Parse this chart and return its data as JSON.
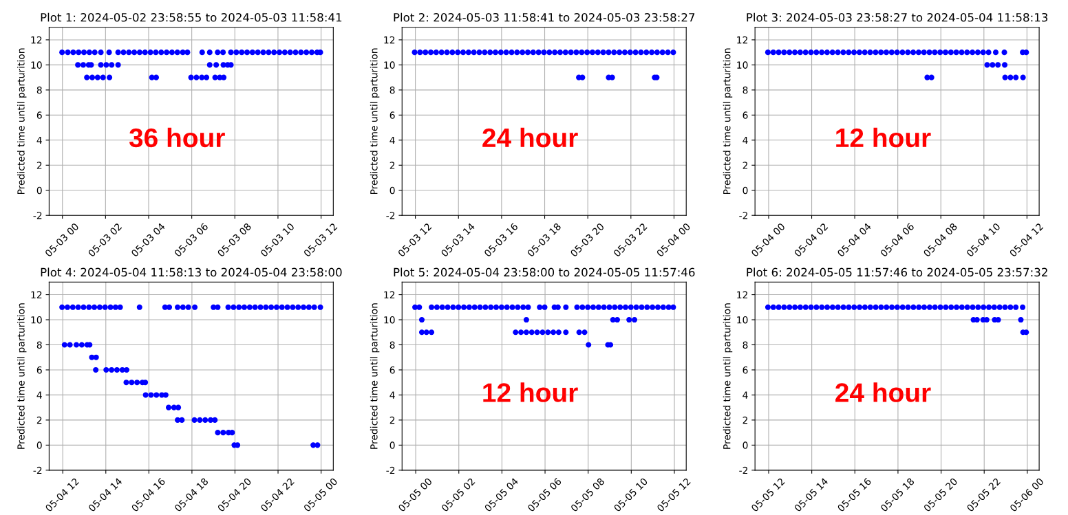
{
  "chart_data": [
    {
      "type": "scatter",
      "title": "Plot 1: 2024-05-02 23:58:55 to 2024-05-03 11:58:41",
      "ylabel": "Predicted time until parturition",
      "annotations": [
        "36 hour"
      ],
      "marker": "circle",
      "grid": true,
      "xlim": [
        "2024-05-02T23:23",
        "2024-05-03T12:34"
      ],
      "ylim": [
        -2,
        13
      ],
      "yticks": [
        -2,
        0,
        2,
        4,
        6,
        8,
        10,
        12
      ],
      "xticks": [
        {
          "value": "2024-05-03T00:00",
          "label": "05-03 00"
        },
        {
          "value": "2024-05-03T02:00",
          "label": "05-03 02"
        },
        {
          "value": "2024-05-03T04:00",
          "label": "05-03 04"
        },
        {
          "value": "2024-05-03T06:00",
          "label": "05-03 06"
        },
        {
          "value": "2024-05-03T08:00",
          "label": "05-03 08"
        },
        {
          "value": "2024-05-03T10:00",
          "label": "05-03 10"
        },
        {
          "value": "2024-05-03T12:00",
          "label": "05-03 12"
        }
      ],
      "series": [
        {
          "color": "#0000ff",
          "x": [
            "2024-05-02T23:59",
            "2024-05-03T00:15",
            "2024-05-03T00:30",
            "2024-05-03T00:45",
            "2024-05-03T01:00",
            "2024-05-03T01:15",
            "2024-05-03T01:30",
            "2024-05-03T01:47",
            "2024-05-03T02:10",
            "2024-05-03T02:35",
            "2024-05-03T02:50",
            "2024-05-03T03:05",
            "2024-05-03T03:20",
            "2024-05-03T03:35",
            "2024-05-03T03:50",
            "2024-05-03T04:05",
            "2024-05-03T04:20",
            "2024-05-03T04:35",
            "2024-05-03T04:50",
            "2024-05-03T05:05",
            "2024-05-03T05:20",
            "2024-05-03T05:35",
            "2024-05-03T05:48",
            "2024-05-03T06:29",
            "2024-05-03T06:50",
            "2024-05-03T07:12",
            "2024-05-03T07:27",
            "2024-05-03T07:49",
            "2024-05-03T08:04",
            "2024-05-03T08:19",
            "2024-05-03T08:34",
            "2024-05-03T08:49",
            "2024-05-03T09:04",
            "2024-05-03T09:19",
            "2024-05-03T09:34",
            "2024-05-03T09:49",
            "2024-05-03T10:04",
            "2024-05-03T10:19",
            "2024-05-03T10:34",
            "2024-05-03T10:49",
            "2024-05-03T11:04",
            "2024-05-03T11:19",
            "2024-05-03T11:34",
            "2024-05-03T11:49",
            "2024-05-03T11:58"
          ],
          "values": [
            11,
            11,
            11,
            11,
            11,
            11,
            11,
            11,
            11,
            11,
            11,
            11,
            11,
            11,
            11,
            11,
            11,
            11,
            11,
            11,
            11,
            11,
            11,
            11,
            11,
            11,
            11,
            11,
            11,
            11,
            11,
            11,
            11,
            11,
            11,
            11,
            11,
            11,
            11,
            11,
            11,
            11,
            11,
            11,
            11
          ]
        },
        {
          "color": "#0000ff",
          "x": [
            "2024-05-03T00:43",
            "2024-05-03T00:58",
            "2024-05-03T01:13",
            "2024-05-03T01:20",
            "2024-05-03T01:47",
            "2024-05-03T02:02",
            "2024-05-03T02:17",
            "2024-05-03T02:35",
            "2024-05-03T06:50",
            "2024-05-03T07:08",
            "2024-05-03T07:28",
            "2024-05-03T07:40",
            "2024-05-03T07:49"
          ],
          "values": [
            10,
            10,
            10,
            10,
            10,
            10,
            10,
            10,
            10,
            10,
            10,
            10,
            10
          ]
        },
        {
          "color": "#0000ff",
          "x": [
            "2024-05-03T01:08",
            "2024-05-03T01:23",
            "2024-05-03T01:38",
            "2024-05-03T01:53",
            "2024-05-03T02:11",
            "2024-05-03T04:09",
            "2024-05-03T04:21",
            "2024-05-03T05:58",
            "2024-05-03T06:13",
            "2024-05-03T06:28",
            "2024-05-03T06:41",
            "2024-05-03T07:05",
            "2024-05-03T07:18",
            "2024-05-03T07:29"
          ],
          "values": [
            9,
            9,
            9,
            9,
            9,
            9,
            9,
            9,
            9,
            9,
            9,
            9,
            9,
            9
          ]
        }
      ]
    },
    {
      "type": "scatter",
      "title": "Plot 2: 2024-05-03 11:58:41 to 2024-05-03 23:58:27",
      "ylabel": "Predicted time until parturition",
      "annotations": [
        "24 hour"
      ],
      "marker": "circle",
      "grid": true,
      "xlim": [
        "2024-05-03T11:23",
        "2024-05-04T00:34"
      ],
      "ylim": [
        -2,
        13
      ],
      "yticks": [
        -2,
        0,
        2,
        4,
        6,
        8,
        10,
        12
      ],
      "xticks": [
        {
          "value": "2024-05-03T12:00",
          "label": "05-03 12"
        },
        {
          "value": "2024-05-03T14:00",
          "label": "05-03 14"
        },
        {
          "value": "2024-05-03T16:00",
          "label": "05-03 16"
        },
        {
          "value": "2024-05-03T18:00",
          "label": "05-03 18"
        },
        {
          "value": "2024-05-03T20:00",
          "label": "05-03 20"
        },
        {
          "value": "2024-05-03T22:00",
          "label": "05-03 22"
        },
        {
          "value": "2024-05-04T00:00",
          "label": "05-04 00"
        }
      ],
      "series": [
        {
          "color": "#0000ff",
          "x": [
            "2024-05-03T11:58",
            "2024-05-03T12:13",
            "2024-05-03T12:28",
            "2024-05-03T12:43",
            "2024-05-03T12:58",
            "2024-05-03T13:13",
            "2024-05-03T13:28",
            "2024-05-03T13:43",
            "2024-05-03T13:58",
            "2024-05-03T14:13",
            "2024-05-03T14:28",
            "2024-05-03T14:43",
            "2024-05-03T14:58",
            "2024-05-03T15:13",
            "2024-05-03T15:28",
            "2024-05-03T15:43",
            "2024-05-03T15:58",
            "2024-05-03T16:13",
            "2024-05-03T16:28",
            "2024-05-03T16:43",
            "2024-05-03T16:58",
            "2024-05-03T17:13",
            "2024-05-03T17:28",
            "2024-05-03T17:43",
            "2024-05-03T17:58",
            "2024-05-03T18:13",
            "2024-05-03T18:28",
            "2024-05-03T18:43",
            "2024-05-03T18:58",
            "2024-05-03T19:13",
            "2024-05-03T19:28",
            "2024-05-03T19:43",
            "2024-05-03T19:58",
            "2024-05-03T20:13",
            "2024-05-03T20:28",
            "2024-05-03T20:43",
            "2024-05-03T20:58",
            "2024-05-03T21:13",
            "2024-05-03T21:28",
            "2024-05-03T21:43",
            "2024-05-03T21:58",
            "2024-05-03T22:13",
            "2024-05-03T22:28",
            "2024-05-03T22:43",
            "2024-05-03T22:58",
            "2024-05-03T23:13",
            "2024-05-03T23:28",
            "2024-05-03T23:43",
            "2024-05-03T23:58"
          ],
          "values": [
            11,
            11,
            11,
            11,
            11,
            11,
            11,
            11,
            11,
            11,
            11,
            11,
            11,
            11,
            11,
            11,
            11,
            11,
            11,
            11,
            11,
            11,
            11,
            11,
            11,
            11,
            11,
            11,
            11,
            11,
            11,
            11,
            11,
            11,
            11,
            11,
            11,
            11,
            11,
            11,
            11,
            11,
            11,
            11,
            11,
            11,
            11,
            11,
            11
          ]
        },
        {
          "color": "#0000ff",
          "x": [
            "2024-05-03T19:35",
            "2024-05-03T19:45",
            "2024-05-03T20:58",
            "2024-05-03T21:08",
            "2024-05-03T23:06",
            "2024-05-03T23:12"
          ],
          "values": [
            9,
            9,
            9,
            9,
            9,
            9
          ]
        }
      ]
    },
    {
      "type": "scatter",
      "title": "Plot 3: 2024-05-03 23:58:27 to 2024-05-04 11:58:13",
      "ylabel": "Predicted time until parturition",
      "annotations": [
        "12 hour"
      ],
      "marker": "circle",
      "grid": true,
      "xlim": [
        "2024-05-03T23:22",
        "2024-05-04T12:34"
      ],
      "ylim": [
        -2,
        13
      ],
      "yticks": [
        -2,
        0,
        2,
        4,
        6,
        8,
        10,
        12
      ],
      "xticks": [
        {
          "value": "2024-05-04T00:00",
          "label": "05-04 00"
        },
        {
          "value": "2024-05-04T02:00",
          "label": "05-04 02"
        },
        {
          "value": "2024-05-04T04:00",
          "label": "05-04 04"
        },
        {
          "value": "2024-05-04T06:00",
          "label": "05-04 06"
        },
        {
          "value": "2024-05-04T08:00",
          "label": "05-04 08"
        },
        {
          "value": "2024-05-04T10:00",
          "label": "05-04 10"
        },
        {
          "value": "2024-05-04T12:00",
          "label": "05-04 12"
        }
      ],
      "series": [
        {
          "color": "#0000ff",
          "x": [
            "2024-05-03T23:58",
            "2024-05-04T00:13",
            "2024-05-04T00:28",
            "2024-05-04T00:43",
            "2024-05-04T00:58",
            "2024-05-04T01:13",
            "2024-05-04T01:28",
            "2024-05-04T01:43",
            "2024-05-04T01:58",
            "2024-05-04T02:13",
            "2024-05-04T02:28",
            "2024-05-04T02:43",
            "2024-05-04T02:58",
            "2024-05-04T03:13",
            "2024-05-04T03:28",
            "2024-05-04T03:43",
            "2024-05-04T03:58",
            "2024-05-04T04:13",
            "2024-05-04T04:28",
            "2024-05-04T04:43",
            "2024-05-04T04:58",
            "2024-05-04T05:13",
            "2024-05-04T05:28",
            "2024-05-04T05:43",
            "2024-05-04T05:58",
            "2024-05-04T06:13",
            "2024-05-04T06:28",
            "2024-05-04T06:43",
            "2024-05-04T06:58",
            "2024-05-04T07:13",
            "2024-05-04T07:28",
            "2024-05-04T07:43",
            "2024-05-04T07:58",
            "2024-05-04T08:13",
            "2024-05-04T08:28",
            "2024-05-04T08:43",
            "2024-05-04T08:58",
            "2024-05-04T09:13",
            "2024-05-04T09:28",
            "2024-05-04T09:43",
            "2024-05-04T09:58",
            "2024-05-04T10:13",
            "2024-05-04T10:33",
            "2024-05-04T10:57",
            "2024-05-04T11:48",
            "2024-05-04T11:58"
          ],
          "values": [
            11,
            11,
            11,
            11,
            11,
            11,
            11,
            11,
            11,
            11,
            11,
            11,
            11,
            11,
            11,
            11,
            11,
            11,
            11,
            11,
            11,
            11,
            11,
            11,
            11,
            11,
            11,
            11,
            11,
            11,
            11,
            11,
            11,
            11,
            11,
            11,
            11,
            11,
            11,
            11,
            11,
            11,
            11,
            11,
            11,
            11
          ]
        },
        {
          "color": "#0000ff",
          "x": [
            "2024-05-04T10:09",
            "2024-05-04T10:24",
            "2024-05-04T10:39",
            "2024-05-04T10:58"
          ],
          "values": [
            10,
            10,
            10,
            10
          ]
        },
        {
          "color": "#0000ff",
          "x": [
            "2024-05-04T07:22",
            "2024-05-04T07:34",
            "2024-05-04T10:59",
            "2024-05-04T11:14",
            "2024-05-04T11:29",
            "2024-05-04T11:49"
          ],
          "values": [
            9,
            9,
            9,
            9,
            9,
            9
          ]
        }
      ]
    },
    {
      "type": "scatter",
      "title": "Plot 4: 2024-05-04 11:58:13 to 2024-05-04 23:58:00",
      "ylabel": "Predicted time until parturition",
      "marker": "circle",
      "grid": true,
      "xlim": [
        "2024-05-04T11:22",
        "2024-05-05T00:34"
      ],
      "ylim": [
        -2,
        13
      ],
      "yticks": [
        -2,
        0,
        2,
        4,
        6,
        8,
        10,
        12
      ],
      "xticks": [
        {
          "value": "2024-05-04T12:00",
          "label": "05-04 12"
        },
        {
          "value": "2024-05-04T14:00",
          "label": "05-04 14"
        },
        {
          "value": "2024-05-04T16:00",
          "label": "05-04 16"
        },
        {
          "value": "2024-05-04T18:00",
          "label": "05-04 18"
        },
        {
          "value": "2024-05-04T20:00",
          "label": "05-04 20"
        },
        {
          "value": "2024-05-04T22:00",
          "label": "05-04 22"
        },
        {
          "value": "2024-05-05T00:00",
          "label": "05-05 00"
        }
      ],
      "series": [
        {
          "color": "#0000ff",
          "x": [
            "2024-05-04T11:58",
            "2024-05-04T12:13",
            "2024-05-04T12:28",
            "2024-05-04T12:43",
            "2024-05-04T12:58",
            "2024-05-04T13:13",
            "2024-05-04T13:28",
            "2024-05-04T13:43",
            "2024-05-04T13:58",
            "2024-05-04T14:13",
            "2024-05-04T14:27",
            "2024-05-04T14:40",
            "2024-05-04T15:34",
            "2024-05-04T16:45",
            "2024-05-04T16:57",
            "2024-05-04T17:20",
            "2024-05-04T17:35",
            "2024-05-04T17:50",
            "2024-05-04T18:08",
            "2024-05-04T19:00",
            "2024-05-04T19:12",
            "2024-05-04T19:41",
            "2024-05-04T19:56",
            "2024-05-04T20:11",
            "2024-05-04T20:26",
            "2024-05-04T20:41",
            "2024-05-04T20:56",
            "2024-05-04T21:11",
            "2024-05-04T21:26",
            "2024-05-04T21:41",
            "2024-05-04T21:56",
            "2024-05-04T22:11",
            "2024-05-04T22:26",
            "2024-05-04T22:41",
            "2024-05-04T22:56",
            "2024-05-04T23:11",
            "2024-05-04T23:26",
            "2024-05-04T23:41",
            "2024-05-04T23:58"
          ],
          "values": [
            11,
            11,
            11,
            11,
            11,
            11,
            11,
            11,
            11,
            11,
            11,
            11,
            11,
            11,
            11,
            11,
            11,
            11,
            11,
            11,
            11,
            11,
            11,
            11,
            11,
            11,
            11,
            11,
            11,
            11,
            11,
            11,
            11,
            11,
            11,
            11,
            11,
            11,
            11
          ]
        },
        {
          "color": "#0000ff",
          "x": [
            "2024-05-04T12:05",
            "2024-05-04T12:20",
            "2024-05-04T12:38",
            "2024-05-04T12:53",
            "2024-05-04T13:08",
            "2024-05-04T13:15",
            "2024-05-04T13:21",
            "2024-05-04T13:33",
            "2024-05-04T13:32",
            "2024-05-04T14:01",
            "2024-05-04T14:16",
            "2024-05-04T14:31",
            "2024-05-04T14:46",
            "2024-05-04T14:58",
            "2024-05-04T14:57",
            "2024-05-04T15:12",
            "2024-05-04T15:27",
            "2024-05-04T15:42",
            "2024-05-04T15:50",
            "2024-05-04T15:51",
            "2024-05-04T16:06",
            "2024-05-04T16:21",
            "2024-05-04T16:36",
            "2024-05-04T16:47",
            "2024-05-04T16:55",
            "2024-05-04T17:10",
            "2024-05-04T17:22",
            "2024-05-04T17:20",
            "2024-05-04T17:32",
            "2024-05-04T18:07",
            "2024-05-04T18:22",
            "2024-05-04T18:37",
            "2024-05-04T18:52",
            "2024-05-04T19:04",
            "2024-05-04T19:12",
            "2024-05-04T19:27",
            "2024-05-04T19:42",
            "2024-05-04T19:52",
            "2024-05-04T19:58",
            "2024-05-04T20:07",
            "2024-05-04T23:38",
            "2024-05-04T23:50"
          ],
          "values": [
            8,
            8,
            8,
            8,
            8,
            8,
            7,
            7,
            6,
            6,
            6,
            6,
            6,
            6,
            5,
            5,
            5,
            5,
            5,
            4,
            4,
            4,
            4,
            4,
            3,
            3,
            3,
            2,
            2,
            2,
            2,
            2,
            2,
            2,
            1,
            1,
            1,
            1,
            0,
            0,
            0,
            0
          ]
        }
      ]
    },
    {
      "type": "scatter",
      "title": "Plot 5: 2024-05-04 23:58:00 to 2024-05-05 11:57:46",
      "ylabel": "Predicted time until parturition",
      "annotations": [
        "12 hour"
      ],
      "marker": "circle",
      "grid": true,
      "xlim": [
        "2024-05-04T23:22",
        "2024-05-05T12:33"
      ],
      "ylim": [
        -2,
        13
      ],
      "yticks": [
        -2,
        0,
        2,
        4,
        6,
        8,
        10,
        12
      ],
      "xticks": [
        {
          "value": "2024-05-05T00:00",
          "label": "05-05 00"
        },
        {
          "value": "2024-05-05T02:00",
          "label": "05-05 02"
        },
        {
          "value": "2024-05-05T04:00",
          "label": "05-05 04"
        },
        {
          "value": "2024-05-05T06:00",
          "label": "05-05 06"
        },
        {
          "value": "2024-05-05T08:00",
          "label": "05-05 08"
        },
        {
          "value": "2024-05-05T10:00",
          "label": "05-05 10"
        },
        {
          "value": "2024-05-05T12:00",
          "label": "05-05 12"
        }
      ],
      "series": [
        {
          "color": "#0000ff",
          "x": [
            "2024-05-04T23:58",
            "2024-05-05T00:10",
            "2024-05-05T00:44",
            "2024-05-05T00:59",
            "2024-05-05T01:14",
            "2024-05-05T01:29",
            "2024-05-05T01:44",
            "2024-05-05T01:59",
            "2024-05-05T02:14",
            "2024-05-05T02:29",
            "2024-05-05T02:44",
            "2024-05-05T02:59",
            "2024-05-05T03:14",
            "2024-05-05T03:29",
            "2024-05-05T03:44",
            "2024-05-05T03:59",
            "2024-05-05T04:14",
            "2024-05-05T04:29",
            "2024-05-05T04:44",
            "2024-05-05T04:59",
            "2024-05-05T05:13",
            "2024-05-05T05:45",
            "2024-05-05T05:59",
            "2024-05-05T06:26",
            "2024-05-05T06:36",
            "2024-05-05T06:58",
            "2024-05-05T07:29",
            "2024-05-05T07:44",
            "2024-05-05T07:59",
            "2024-05-05T08:14",
            "2024-05-05T08:29",
            "2024-05-05T08:44",
            "2024-05-05T08:59",
            "2024-05-05T09:14",
            "2024-05-05T09:29",
            "2024-05-05T09:44",
            "2024-05-05T09:59",
            "2024-05-05T10:14",
            "2024-05-05T10:29",
            "2024-05-05T10:44",
            "2024-05-05T10:59",
            "2024-05-05T11:14",
            "2024-05-05T11:29",
            "2024-05-05T11:44",
            "2024-05-05T11:57"
          ],
          "values": [
            11,
            11,
            11,
            11,
            11,
            11,
            11,
            11,
            11,
            11,
            11,
            11,
            11,
            11,
            11,
            11,
            11,
            11,
            11,
            11,
            11,
            11,
            11,
            11,
            11,
            11,
            11,
            11,
            11,
            11,
            11,
            11,
            11,
            11,
            11,
            11,
            11,
            11,
            11,
            11,
            11,
            11,
            11,
            11,
            11
          ]
        },
        {
          "color": "#0000ff",
          "x": [
            "2024-05-05T00:17",
            "2024-05-05T05:08",
            "2024-05-05T09:09",
            "2024-05-05T09:21",
            "2024-05-05T09:54",
            "2024-05-05T10:09"
          ],
          "values": [
            10,
            10,
            10,
            10,
            10,
            10
          ]
        },
        {
          "color": "#0000ff",
          "x": [
            "2024-05-05T00:17",
            "2024-05-05T00:30",
            "2024-05-05T00:44",
            "2024-05-05T04:38",
            "2024-05-05T04:53",
            "2024-05-05T05:08",
            "2024-05-05T05:23",
            "2024-05-05T05:38",
            "2024-05-05T05:53",
            "2024-05-05T06:08",
            "2024-05-05T06:23",
            "2024-05-05T06:38",
            "2024-05-05T06:58",
            "2024-05-05T07:35",
            "2024-05-05T07:50"
          ],
          "values": [
            9,
            9,
            9,
            9,
            9,
            9,
            9,
            9,
            9,
            9,
            9,
            9,
            9,
            9,
            9
          ]
        },
        {
          "color": "#0000ff",
          "x": [
            "2024-05-05T08:01",
            "2024-05-05T08:55",
            "2024-05-05T09:02"
          ],
          "values": [
            8,
            8,
            8
          ]
        }
      ]
    },
    {
      "type": "scatter",
      "title": "Plot 6: 2024-05-05 11:57:46 to 2024-05-05 23:57:32",
      "ylabel": "Predicted time until parturition",
      "annotations": [
        "24 hour"
      ],
      "marker": "circle",
      "grid": true,
      "xlim": [
        "2024-05-05T11:22",
        "2024-05-06T00:33"
      ],
      "ylim": [
        -2,
        13
      ],
      "yticks": [
        -2,
        0,
        2,
        4,
        6,
        8,
        10,
        12
      ],
      "xticks": [
        {
          "value": "2024-05-05T12:00",
          "label": "05-05 12"
        },
        {
          "value": "2024-05-05T14:00",
          "label": "05-05 14"
        },
        {
          "value": "2024-05-05T16:00",
          "label": "05-05 16"
        },
        {
          "value": "2024-05-05T18:00",
          "label": "05-05 18"
        },
        {
          "value": "2024-05-05T20:00",
          "label": "05-05 20"
        },
        {
          "value": "2024-05-05T22:00",
          "label": "05-05 22"
        },
        {
          "value": "2024-05-06T00:00",
          "label": "05-06 00"
        }
      ],
      "series": [
        {
          "color": "#0000ff",
          "x": [
            "2024-05-05T11:58",
            "2024-05-05T12:13",
            "2024-05-05T12:28",
            "2024-05-05T12:43",
            "2024-05-05T12:58",
            "2024-05-05T13:13",
            "2024-05-05T13:28",
            "2024-05-05T13:43",
            "2024-05-05T13:58",
            "2024-05-05T14:13",
            "2024-05-05T14:28",
            "2024-05-05T14:43",
            "2024-05-05T14:58",
            "2024-05-05T15:13",
            "2024-05-05T15:28",
            "2024-05-05T15:43",
            "2024-05-05T15:58",
            "2024-05-05T16:13",
            "2024-05-05T16:28",
            "2024-05-05T16:43",
            "2024-05-05T16:58",
            "2024-05-05T17:13",
            "2024-05-05T17:28",
            "2024-05-05T17:43",
            "2024-05-05T17:58",
            "2024-05-05T18:13",
            "2024-05-05T18:28",
            "2024-05-05T18:43",
            "2024-05-05T18:58",
            "2024-05-05T19:13",
            "2024-05-05T19:28",
            "2024-05-05T19:43",
            "2024-05-05T19:58",
            "2024-05-05T20:13",
            "2024-05-05T20:28",
            "2024-05-05T20:43",
            "2024-05-05T20:58",
            "2024-05-05T21:13",
            "2024-05-05T21:28",
            "2024-05-05T21:43",
            "2024-05-05T21:58",
            "2024-05-05T22:13",
            "2024-05-05T22:28",
            "2024-05-05T22:43",
            "2024-05-05T22:58",
            "2024-05-05T23:13",
            "2024-05-05T23:28",
            "2024-05-05T23:47"
          ],
          "values": [
            11,
            11,
            11,
            11,
            11,
            11,
            11,
            11,
            11,
            11,
            11,
            11,
            11,
            11,
            11,
            11,
            11,
            11,
            11,
            11,
            11,
            11,
            11,
            11,
            11,
            11,
            11,
            11,
            11,
            11,
            11,
            11,
            11,
            11,
            11,
            11,
            11,
            11,
            11,
            11,
            11,
            11,
            11,
            11,
            11,
            11,
            11,
            11
          ]
        },
        {
          "color": "#0000ff",
          "x": [
            "2024-05-05T21:30",
            "2024-05-05T21:40",
            "2024-05-05T21:57",
            "2024-05-05T22:07",
            "2024-05-05T22:29",
            "2024-05-05T22:39",
            "2024-05-05T23:42"
          ],
          "values": [
            10,
            10,
            10,
            10,
            10,
            10,
            10
          ]
        },
        {
          "color": "#0000ff",
          "x": [
            "2024-05-05T23:48",
            "2024-05-05T23:57"
          ],
          "values": [
            9,
            9
          ]
        }
      ]
    }
  ]
}
